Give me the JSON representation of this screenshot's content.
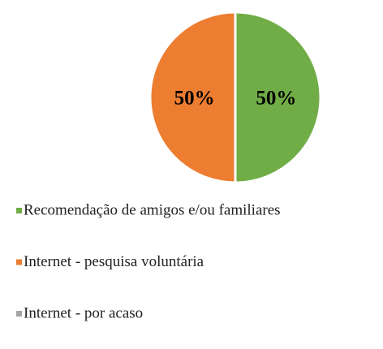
{
  "chart_data": {
    "type": "pie",
    "categories": [
      "Recomendação de amigos e/ou familiares",
      "Internet - pesquisa voluntária",
      "Internet - por acaso"
    ],
    "values": [
      50,
      50,
      0
    ],
    "value_labels": [
      "50%",
      "50%",
      null
    ],
    "colors": [
      "#70ad47",
      "#ed7d31",
      "#a5a5a5"
    ],
    "legend": "bottom"
  }
}
